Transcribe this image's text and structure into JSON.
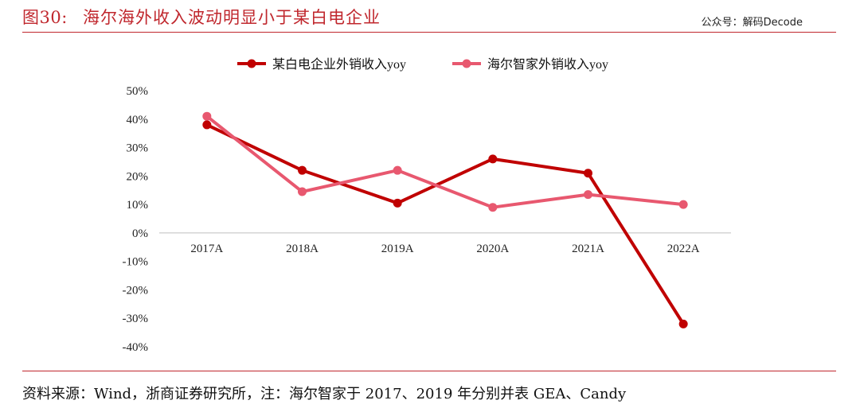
{
  "header": {
    "figure_label": "图30:",
    "title": "海尔海外收入波动明显小于某白电企业",
    "watermark": "公众号：解码Decode"
  },
  "footer": {
    "source": "资料来源：Wind，浙商证券研究所，注：海尔智家于 2017、2019 年分别并表 GEA、Candy"
  },
  "colors": {
    "accent": "#c0272d",
    "series_1": "#c00000",
    "series_2": "#e8586f",
    "axis": "#bfbfbf"
  },
  "chart_data": {
    "type": "line",
    "categories": [
      "2017A",
      "2018A",
      "2019A",
      "2020A",
      "2021A",
      "2022A"
    ],
    "ylim": [
      -40,
      50
    ],
    "yticks": [
      "50%",
      "40%",
      "30%",
      "20%",
      "10%",
      "0%",
      "-10%",
      "-20%",
      "-30%",
      "-40%"
    ],
    "ytick_values": [
      50,
      40,
      30,
      20,
      10,
      0,
      -10,
      -20,
      -30,
      -40
    ],
    "legend_position": "top-center",
    "grid": false,
    "series": [
      {
        "name": "某白电企业外销收入yoy",
        "values": [
          38,
          22,
          10.5,
          26,
          21,
          -32
        ]
      },
      {
        "name": "海尔智家外销收入yoy",
        "values": [
          41,
          14.5,
          22,
          9,
          13.5,
          10
        ]
      }
    ]
  }
}
